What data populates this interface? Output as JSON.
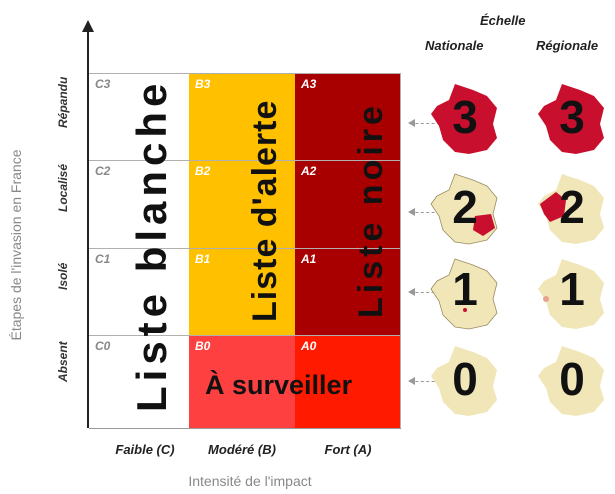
{
  "y_axis_title": "Étapes de l'invasion en France",
  "x_axis_title": "Intensité de l'impact",
  "rows": [
    "Répandu",
    "Localisé",
    "Isolé",
    "Absent"
  ],
  "columns": [
    "Faible (C)",
    "Modéré (B)",
    "Fort (A)"
  ],
  "codes": {
    "c3": "C3",
    "c2": "C2",
    "c1": "C1",
    "c0": "C0",
    "b3": "B3",
    "b2": "B2",
    "b1": "B1",
    "b0": "B0",
    "a3": "A3",
    "a2": "A2",
    "a1": "A1",
    "a0": "A0"
  },
  "lists": {
    "white": "Liste blanche",
    "alert": "Liste d'alerte",
    "black": "Liste noire",
    "watch": "À surveiller"
  },
  "scale": {
    "title": "Échelle",
    "national": "Nationale",
    "regional": "Régionale"
  },
  "levels": [
    "3",
    "2",
    "1",
    "0"
  ],
  "colors": {
    "white_list": "#ffffff",
    "alert_list": "#ffc000",
    "black_list": "#a80000",
    "watch_b0": "#ff4040",
    "watch_a0": "#ff1a00",
    "map_beige": "#f0e6b8",
    "map_red": "#c8102e"
  }
}
